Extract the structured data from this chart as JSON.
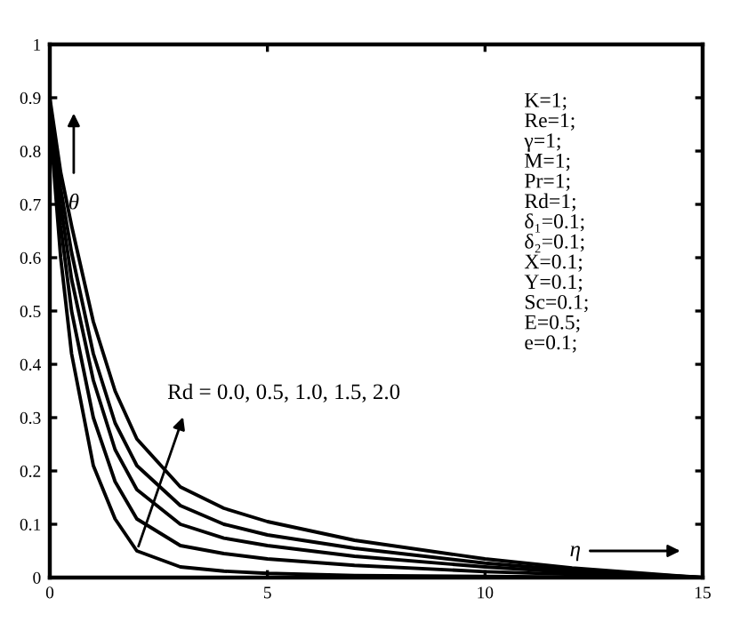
{
  "chart_data": {
    "type": "line",
    "x": [
      0,
      0.25,
      0.5,
      1,
      1.5,
      2,
      3,
      4,
      5,
      7,
      10,
      12,
      15
    ],
    "series": [
      {
        "color": "#000000",
        "values": [
          0.86,
          0.6,
          0.42,
          0.21,
          0.11,
          0.05,
          0.02,
          0.012,
          0.008,
          0.004,
          0.002,
          0.001,
          0
        ]
      },
      {
        "color": "#000000",
        "values": [
          0.87,
          0.66,
          0.5,
          0.3,
          0.18,
          0.11,
          0.06,
          0.045,
          0.035,
          0.023,
          0.011,
          0.006,
          0
        ]
      },
      {
        "color": "#000000",
        "values": [
          0.88,
          0.7,
          0.56,
          0.37,
          0.24,
          0.165,
          0.1,
          0.074,
          0.06,
          0.04,
          0.02,
          0.01,
          0
        ]
      },
      {
        "color": "#000000",
        "values": [
          0.89,
          0.73,
          0.61,
          0.42,
          0.29,
          0.21,
          0.135,
          0.1,
          0.08,
          0.055,
          0.027,
          0.014,
          0
        ]
      },
      {
        "color": "#000000",
        "values": [
          0.9,
          0.76,
          0.66,
          0.48,
          0.35,
          0.26,
          0.17,
          0.13,
          0.105,
          0.07,
          0.035,
          0.018,
          0
        ]
      }
    ],
    "xlim": [
      0,
      15
    ],
    "ylim": [
      0,
      1
    ],
    "xticks": [
      0,
      5,
      10,
      15
    ],
    "yticks": [
      0,
      0.1,
      0.2,
      0.3,
      0.4,
      0.5,
      0.6,
      0.7,
      0.8,
      0.9,
      1
    ],
    "grid": false,
    "legend": false,
    "marker": "none",
    "line_style": "solid",
    "annotations": [
      "θ",
      "η",
      {
        "text": "Rd = 0.0, 0.5, 1.0, 1.5, 2.0",
        "x": 2,
        "y": 0.05
      },
      "K=1;\nRe=1;\nγ=1;\nM=1;\nPr=1;\nRd=1;\nδ₁=0.1;\nδ₂=0.1;\nX=0.1;\nY=0.1;\nSc=0.1;\nE=0.5;\ne=0.1;"
    ]
  }
}
